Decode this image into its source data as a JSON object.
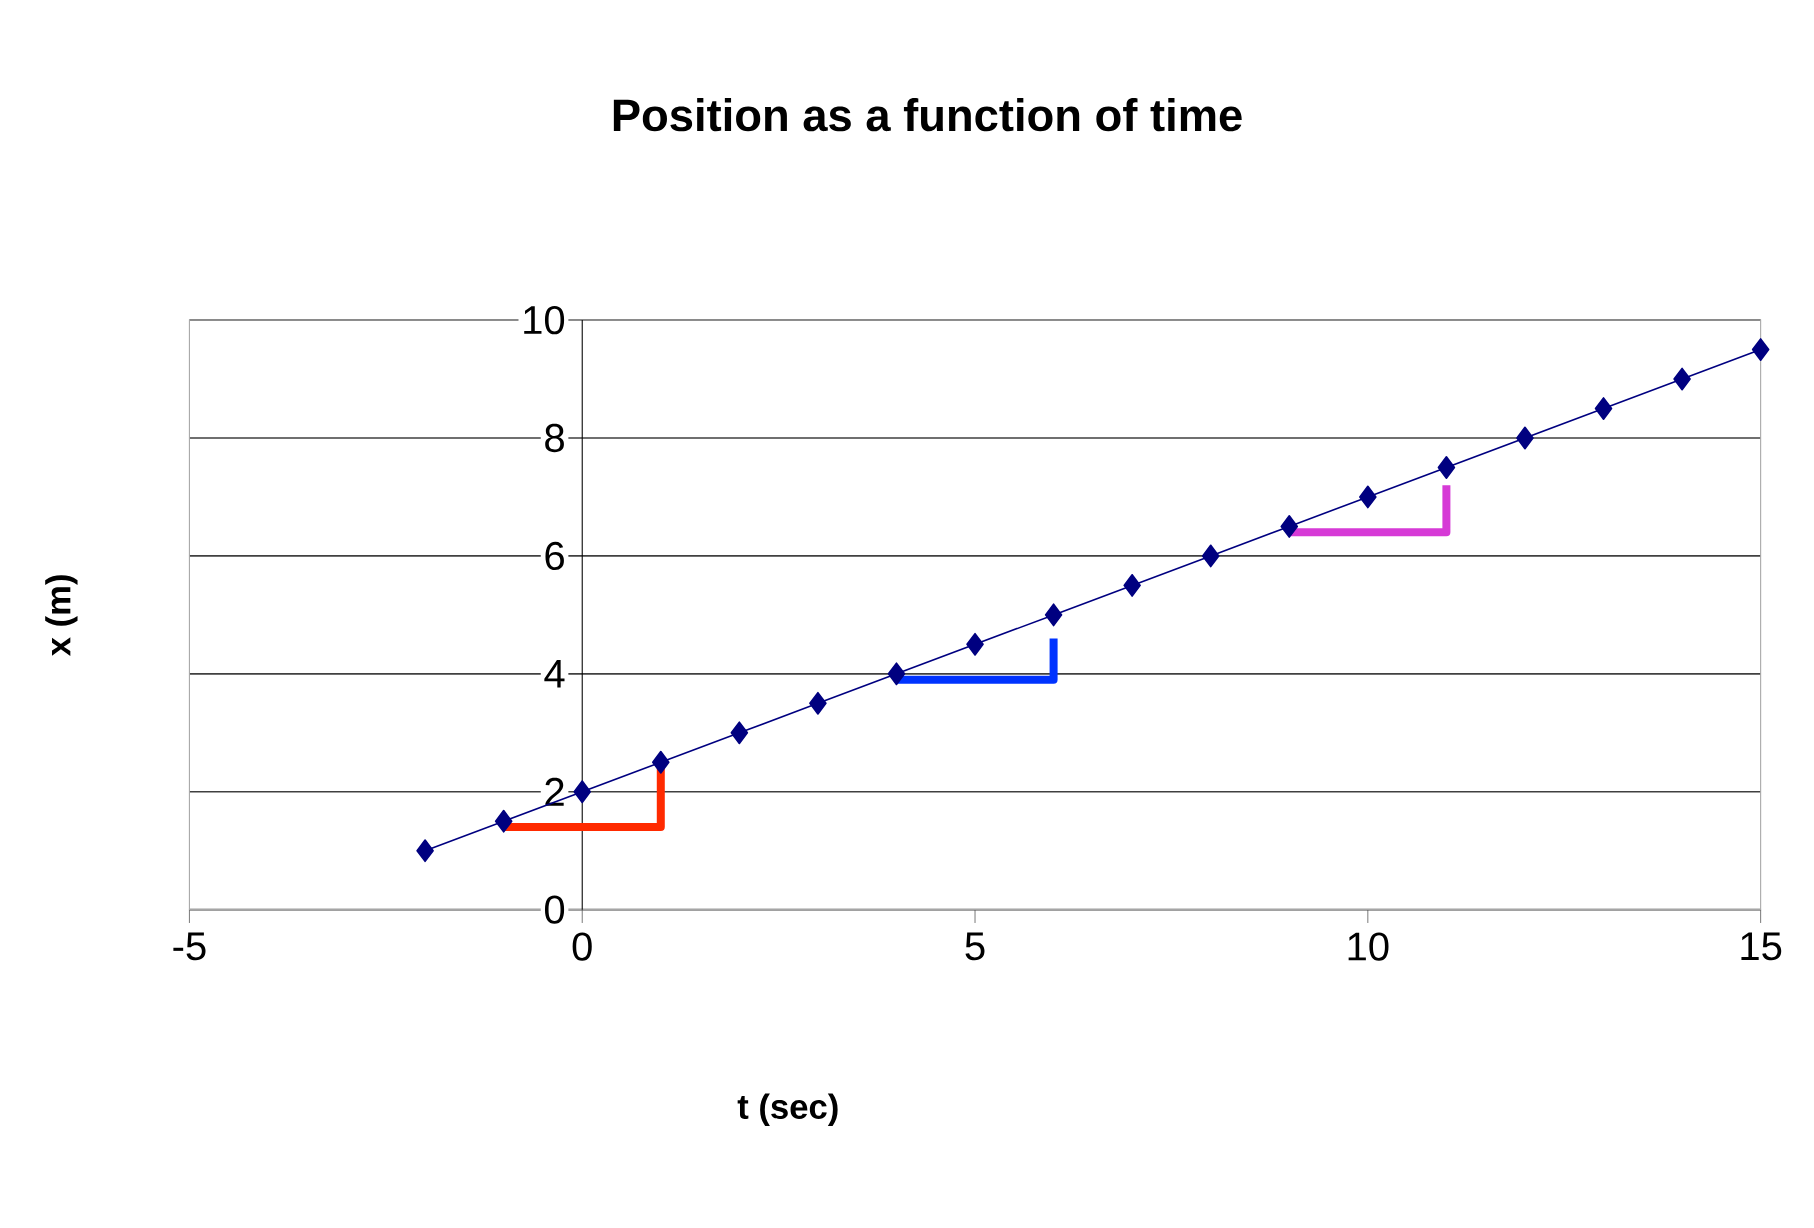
{
  "chart_data": {
    "type": "line",
    "title": "Position as a function of time",
    "xlabel": "t (sec)",
    "ylabel": "x (m)",
    "xlim": [
      -5,
      15
    ],
    "xticks": [
      -5,
      0,
      5,
      10,
      15
    ],
    "ylim": [
      0,
      10
    ],
    "yticks": [
      0,
      2,
      4,
      6,
      8,
      10
    ],
    "grid": "y",
    "series": [
      {
        "color": "#000080",
        "marker": "diamond",
        "x": [
          -2,
          -1,
          0,
          1,
          2,
          3,
          4,
          5,
          6,
          7,
          8,
          9,
          10,
          11,
          12,
          13,
          14,
          15
        ],
        "values": [
          1,
          1.5,
          2,
          2.5,
          3,
          3.5,
          4,
          4.5,
          5,
          5.5,
          6,
          6.5,
          7,
          7.5,
          8,
          8.5,
          9,
          9.5
        ]
      },
      {
        "color": "#ff2a00",
        "marker": "none",
        "x": [
          -1,
          1,
          1
        ],
        "values": [
          1.4,
          1.4,
          2.5
        ]
      },
      {
        "color": "#0033ff",
        "marker": "none",
        "x": [
          4,
          6,
          6
        ],
        "values": [
          3.9,
          3.9,
          4.6
        ]
      },
      {
        "color": "#d63ad6",
        "marker": "none",
        "x": [
          9,
          11,
          11
        ],
        "values": [
          6.4,
          6.4,
          7.2
        ]
      }
    ]
  }
}
